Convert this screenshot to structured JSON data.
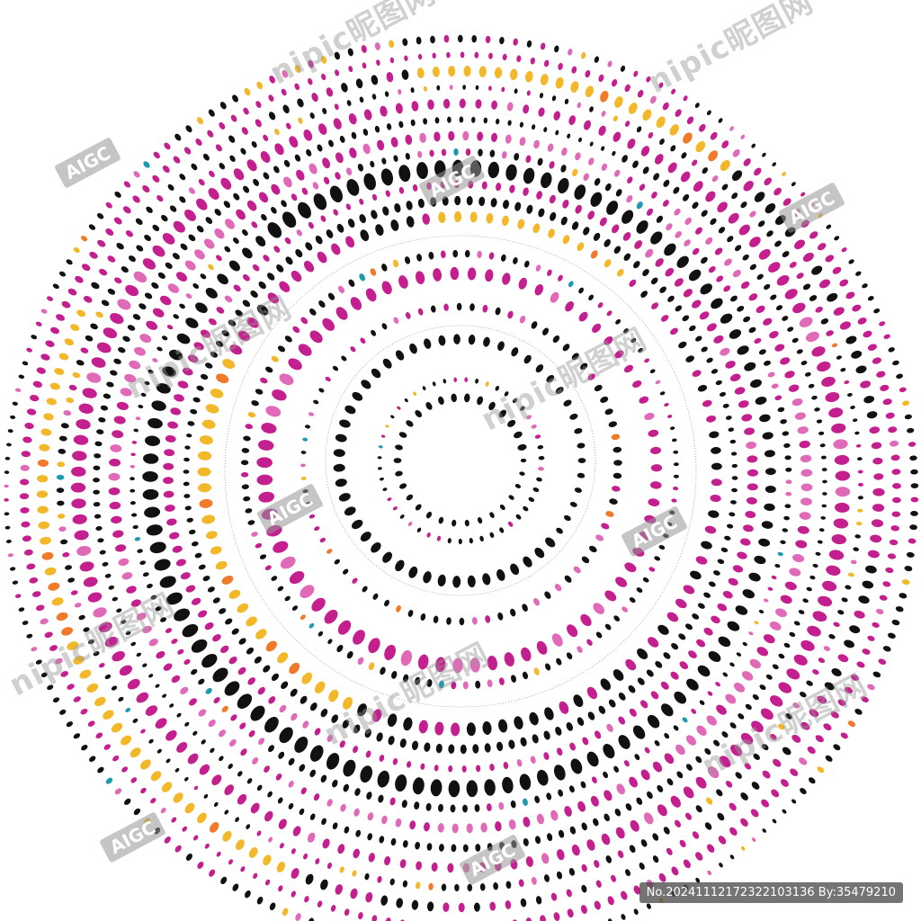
{
  "image": {
    "description_colors": {
      "magenta": "#c41f8e",
      "pink": "#e06ab8",
      "black": "#111111",
      "gold": "#f2b82a",
      "orange": "#f07a2a",
      "teal": "#1e9ab0",
      "gray_line": "#9a9a9a"
    }
  },
  "watermarks": {
    "nipic_text": "nipic昵图网",
    "aigc_text": "AIGC"
  },
  "footer": {
    "id_text": "No.20241112172322103136 By:35479210"
  }
}
